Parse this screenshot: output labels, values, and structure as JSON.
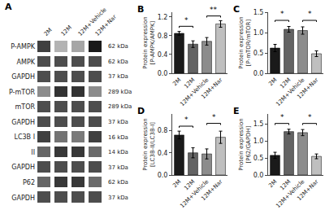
{
  "chart_data": [
    {
      "type": "heatmap",
      "title": "A",
      "x": [
        "2M",
        "12M",
        "12M+Vehicle",
        "12M+Nar"
      ],
      "y": [
        "P-AMPK",
        "AMPK",
        "GAPDH",
        "P-mTOR",
        "mTOR",
        "GAPDH",
        "LC3B I",
        "II",
        "GAPDH",
        "P62",
        "GAPDH"
      ],
      "right_labels": [
        "62 kDa",
        "62 kDa",
        "37 kDa",
        "289 kDa",
        "289 kDa",
        "37 kDa",
        "16 kDa",
        "14 kDa",
        "37 kDa",
        "62 kDa",
        "37 kDa"
      ],
      "cells": [
        [
          0.25,
          0.7,
          0.65,
          0.1
        ],
        [
          0.3,
          0.3,
          0.3,
          0.3
        ],
        [
          0.3,
          0.3,
          0.3,
          0.3
        ],
        [
          0.55,
          0.2,
          0.2,
          0.55
        ],
        [
          0.3,
          0.3,
          0.3,
          0.3
        ],
        [
          0.3,
          0.3,
          0.3,
          0.3
        ],
        [
          0.25,
          0.45,
          0.48,
          0.25
        ],
        [
          0.4,
          0.22,
          0.22,
          0.42
        ],
        [
          0.3,
          0.3,
          0.3,
          0.3
        ],
        [
          0.4,
          0.22,
          0.22,
          0.42
        ],
        [
          0.3,
          0.3,
          0.3,
          0.3
        ]
      ],
      "zlim": [
        0,
        1
      ],
      "grid": false
    },
    {
      "type": "bar",
      "title": "B",
      "ylabel": "Protein expression\n[P-AMPK/AMPK]",
      "categories": [
        "2M",
        "12M",
        "12M+Vehicle",
        "12M+Nar"
      ],
      "values": [
        0.85,
        0.62,
        0.68,
        1.05
      ],
      "errors": [
        0.04,
        0.07,
        0.08,
        0.07
      ],
      "colors": [
        "#1a1a1a",
        "#636363",
        "#8c8c8c",
        "#bfbfbf"
      ],
      "ylim": [
        0,
        1.3
      ],
      "yticks": [
        {
          "value": 0,
          "label": "0.0"
        },
        0.4,
        0.8,
        1.2
      ],
      "sig_lines": [
        {
          "x1": 0,
          "x2": 1,
          "y": 1.0,
          "text": "*"
        },
        {
          "x1": 2,
          "x2": 3,
          "y": 1.22,
          "text": "**"
        }
      ],
      "grid": false
    },
    {
      "type": "bar",
      "title": "C",
      "ylabel": "Protein expression\n[P-mTOR/mTOR]",
      "categories": [
        "2M",
        "12M",
        "12M+Vehicle",
        "12M+Nar"
      ],
      "values": [
        0.62,
        1.08,
        1.05,
        0.48
      ],
      "errors": [
        0.09,
        0.07,
        0.09,
        0.07
      ],
      "colors": [
        "#1a1a1a",
        "#636363",
        "#8c8c8c",
        "#bfbfbf"
      ],
      "ylim": [
        0,
        1.5
      ],
      "yticks": [
        {
          "value": 0,
          "label": "0.0"
        },
        0.5,
        {
          "value": 1,
          "label": "1.0"
        },
        1.5
      ],
      "sig_lines": [
        {
          "x1": 0,
          "x2": 1,
          "y": 1.3,
          "text": "*"
        },
        {
          "x1": 2,
          "x2": 3,
          "y": 1.3,
          "text": "*"
        }
      ],
      "grid": false
    },
    {
      "type": "bar",
      "title": "D",
      "ylabel": "Protein expression\n[LC3B-II/LC3B-I]",
      "categories": [
        "2M",
        "12M",
        "12M+Vehicle",
        "12M+Nar"
      ],
      "values": [
        0.72,
        0.4,
        0.38,
        0.68
      ],
      "errors": [
        0.07,
        0.09,
        0.09,
        0.11
      ],
      "colors": [
        "#1a1a1a",
        "#636363",
        "#8c8c8c",
        "#bfbfbf"
      ],
      "ylim": [
        0,
        1.1
      ],
      "yticks": [
        {
          "value": 0,
          "label": "0.0"
        },
        0.4,
        0.8
      ],
      "sig_lines": [
        {
          "x1": 0,
          "x2": 1,
          "y": 0.88,
          "text": "*"
        },
        {
          "x1": 2,
          "x2": 3,
          "y": 0.93,
          "text": "*"
        }
      ],
      "grid": false
    },
    {
      "type": "bar",
      "title": "E",
      "ylabel": "Protein expression\n[P62/GAPDH]",
      "categories": [
        "2M",
        "12M",
        "12M+Vehicle",
        "12M+Nar"
      ],
      "values": [
        0.58,
        1.28,
        1.25,
        0.55
      ],
      "errors": [
        0.09,
        0.07,
        0.09,
        0.07
      ],
      "colors": [
        "#1a1a1a",
        "#636363",
        "#8c8c8c",
        "#bfbfbf"
      ],
      "ylim": [
        0,
        1.8
      ],
      "yticks": [
        {
          "value": 0,
          "label": "0.0"
        },
        0.5,
        {
          "value": 1,
          "label": "1.0"
        },
        1.5
      ],
      "sig_lines": [
        {
          "x1": 0,
          "x2": 1,
          "y": 1.52,
          "text": "*"
        },
        {
          "x1": 2,
          "x2": 3,
          "y": 1.52,
          "text": "*"
        }
      ],
      "grid": false
    }
  ]
}
